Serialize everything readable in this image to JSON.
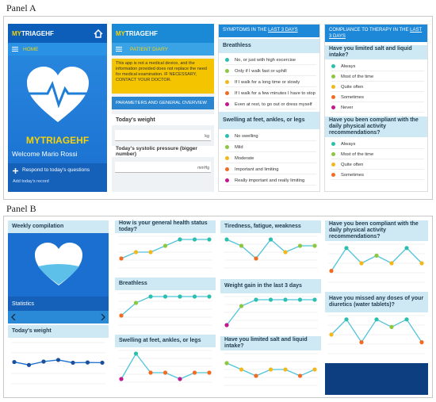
{
  "panel_a": {
    "label": "Panel A",
    "screen1": {
      "app_prefix": "MY",
      "app_suffix": "TRIAGEHF",
      "menu": "HOME",
      "brand_prefix": "MY",
      "brand_suffix": "TRIAGEHF",
      "welcome": "Welcome Mario Rossi",
      "action": "Respond to today's questions",
      "action_sub": "Add today's record"
    },
    "screen2": {
      "app_prefix": "MY",
      "app_suffix": "TRIAGEHF",
      "menu": "PATIENT DIARY",
      "notice": "This app is not a medical device, and the information provided does not replace the need for medical examination. IF NECESSARY, CONTACT YOUR DOCTOR.",
      "section": "PARAMETERS AND GENERAL OVERVIEW",
      "weight_label": "Today's weight",
      "weight_unit": "kg",
      "pressure_label": "Today's systolic pressure (bigger number)",
      "pressure_unit": "mmHg"
    },
    "screen3": {
      "header_prefix": "SYMPTOMS IN THE ",
      "header_link": "LAST 3 DAYS",
      "questions": [
        {
          "title": "Breathless",
          "options": [
            {
              "text": "No, or just with high excercise",
              "color": "#2bbfae"
            },
            {
              "text": "Only if I walk fast or uphill",
              "color": "#8dc63f"
            },
            {
              "text": "If I walk for a long time or slowly",
              "color": "#f2b81b"
            },
            {
              "text": "If I walk for a few minutes I have to stop",
              "color": "#f26b21"
            },
            {
              "text": "Even at rest, to go out or dress myself",
              "color": "#c3178f"
            }
          ]
        },
        {
          "title": "Swelling at feet, ankles, or legs",
          "options": [
            {
              "text": "No swelling",
              "color": "#2bbfae"
            },
            {
              "text": "Mild",
              "color": "#8dc63f"
            },
            {
              "text": "Moderate",
              "color": "#f2b81b"
            },
            {
              "text": "Important and limiting",
              "color": "#f26b21"
            },
            {
              "text": "Really important and really limiting",
              "color": "#c3178f"
            }
          ]
        }
      ]
    },
    "screen4": {
      "header_prefix": "COMPLIANCE TO THERAPY IN THE ",
      "header_link": "LAST 3 DAYS",
      "questions": [
        {
          "title": "Have you limited salt and liquid intake?",
          "options": [
            {
              "text": "Always",
              "color": "#2bbfae"
            },
            {
              "text": "Most of the time",
              "color": "#8dc63f"
            },
            {
              "text": "Quite often",
              "color": "#f2b81b"
            },
            {
              "text": "Sometimes",
              "color": "#f26b21"
            },
            {
              "text": "Never",
              "color": "#c3178f"
            }
          ]
        },
        {
          "title": "Have you been compliant with the daily physical activity recommendations?",
          "options": [
            {
              "text": "Always",
              "color": "#2bbfae"
            },
            {
              "text": "Most of the time",
              "color": "#8dc63f"
            },
            {
              "text": "Quite often",
              "color": "#f2b81b"
            },
            {
              "text": "Sometimes",
              "color": "#f26b21"
            }
          ]
        }
      ]
    }
  },
  "panel_b": {
    "label": "Panel B",
    "weekly": "Weekly compilation",
    "stats": "Statistics",
    "weight_title": "Today's weight",
    "weight_chart": {
      "values": [
        95,
        82,
        97,
        104,
        92,
        93,
        92
      ],
      "ylim": [
        0,
        180
      ],
      "color": "#1a6fd0"
    },
    "level_colors": [
      "#c3178f",
      "#f26b21",
      "#f2b81b",
      "#8dc63f",
      "#2bbfae"
    ],
    "line_color": "#4fc3d9",
    "ylim": [
      0.5,
      5.5
    ],
    "charts": [
      {
        "title": "How is your general health status today?",
        "values": [
          2,
          3,
          3,
          4,
          5,
          5,
          5
        ]
      },
      {
        "title": "Breathless",
        "values": [
          2,
          4,
          5,
          5,
          5,
          5,
          5
        ]
      },
      {
        "title": "Swelling at feet, ankles, or legs",
        "values": [
          1,
          5,
          2,
          2,
          1,
          2,
          2
        ]
      },
      {
        "title": "Tiredness, fatigue, weakness",
        "values": [
          5,
          4,
          2,
          5,
          3,
          4,
          4
        ]
      },
      {
        "title": "Weight gain in the last 3 days",
        "values": [
          1,
          4,
          5,
          5,
          5,
          5,
          5
        ]
      },
      {
        "title": "Have you limited salt and liquid intake?",
        "values": [
          4,
          3,
          2,
          3,
          3,
          2,
          3
        ]
      },
      {
        "title": "Have you been compliant with the daily physical activity recommendations?",
        "values": [
          2,
          5,
          3,
          4,
          3,
          5,
          3
        ]
      },
      {
        "title": "Have you missed any doses of your diuretics (water tablets)?",
        "values": [
          3,
          5,
          2,
          5,
          4,
          5,
          2
        ]
      }
    ]
  }
}
